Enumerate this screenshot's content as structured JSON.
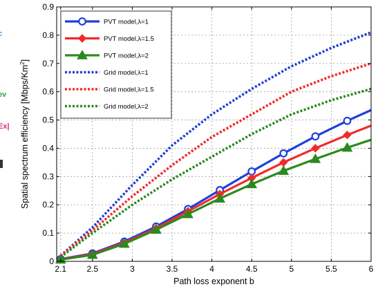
{
  "edge_fragments": [
    {
      "text": "c",
      "color": "#3a8fd0"
    },
    {
      "text": "ev",
      "color": "#2ea44f"
    },
    {
      "text": "Ex|",
      "color": "#d0307a"
    }
  ],
  "chart_data": {
    "type": "line",
    "title": "",
    "xlabel": "Path loss exponent b",
    "ylabel": "Spatial spectrum efficiency [Mbps/Km",
    "ylabel_sup": "2",
    "ylabel_end": "]",
    "xlim": [
      2.05,
      6.0
    ],
    "ylim": [
      0,
      0.9
    ],
    "xticks": [
      2.1,
      2.5,
      3,
      3.5,
      4,
      4.5,
      5,
      5.5,
      6
    ],
    "xtick_labels": [
      "2.1",
      "2.5",
      "3",
      "3.5",
      "4",
      "4.5",
      "5",
      "5.5",
      "6"
    ],
    "yticks": [
      0,
      0.1,
      0.2,
      0.3,
      0.4,
      0.5,
      0.6,
      0.7,
      0.8,
      0.9
    ],
    "ytick_labels": [
      "0",
      "0.1",
      "0.2",
      "0.3",
      "0.4",
      "0.5",
      "0.6",
      "0.7",
      "0.8",
      "0.9"
    ],
    "grid": true,
    "legend_position": "top-left",
    "series": [
      {
        "name": "PVT model,λ=1",
        "color": "#1f3fd8",
        "style": "solid",
        "marker": "circle",
        "x": [
          2.1,
          2.5,
          2.9,
          3.3,
          3.7,
          4.1,
          4.5,
          4.9,
          5.3,
          5.7,
          6.0
        ],
        "y": [
          0.008,
          0.028,
          0.07,
          0.123,
          0.185,
          0.252,
          0.318,
          0.382,
          0.442,
          0.497,
          0.535
        ]
      },
      {
        "name": "PVT model,λ=1.5",
        "color": "#f22a2a",
        "style": "solid",
        "marker": "diamond",
        "x": [
          2.1,
          2.5,
          2.9,
          3.3,
          3.7,
          4.1,
          4.5,
          4.9,
          5.3,
          5.7,
          6.0
        ],
        "y": [
          0.007,
          0.026,
          0.066,
          0.117,
          0.177,
          0.238,
          0.295,
          0.35,
          0.4,
          0.447,
          0.48
        ]
      },
      {
        "name": "PVT model,λ=2",
        "color": "#2a8a1e",
        "style": "solid",
        "marker": "triangle",
        "x": [
          2.1,
          2.5,
          2.9,
          3.3,
          3.7,
          4.1,
          4.5,
          4.9,
          5.3,
          5.7,
          6.0
        ],
        "y": [
          0.006,
          0.023,
          0.062,
          0.112,
          0.167,
          0.222,
          0.273,
          0.32,
          0.362,
          0.402,
          0.43
        ]
      },
      {
        "name": "Grid model,λ=1",
        "color": "#1f3fd8",
        "style": "dotted",
        "marker": "none",
        "x": [
          2.1,
          2.5,
          3.0,
          3.5,
          4.0,
          4.5,
          5.0,
          5.5,
          6.0
        ],
        "y": [
          0.02,
          0.12,
          0.27,
          0.41,
          0.52,
          0.61,
          0.69,
          0.755,
          0.81
        ]
      },
      {
        "name": "Grid model,λ=1.5",
        "color": "#f22a2a",
        "style": "dotted",
        "marker": "none",
        "x": [
          2.1,
          2.5,
          3.0,
          3.5,
          4.0,
          4.5,
          5.0,
          5.5,
          6.0
        ],
        "y": [
          0.02,
          0.11,
          0.23,
          0.34,
          0.44,
          0.52,
          0.6,
          0.655,
          0.7
        ]
      },
      {
        "name": "Grid model,λ=2",
        "color": "#2a8a1e",
        "style": "dotted",
        "marker": "none",
        "x": [
          2.1,
          2.5,
          3.0,
          3.5,
          4.0,
          4.5,
          5.0,
          5.5,
          6.0
        ],
        "y": [
          0.015,
          0.1,
          0.2,
          0.29,
          0.37,
          0.45,
          0.52,
          0.57,
          0.61
        ]
      }
    ]
  }
}
